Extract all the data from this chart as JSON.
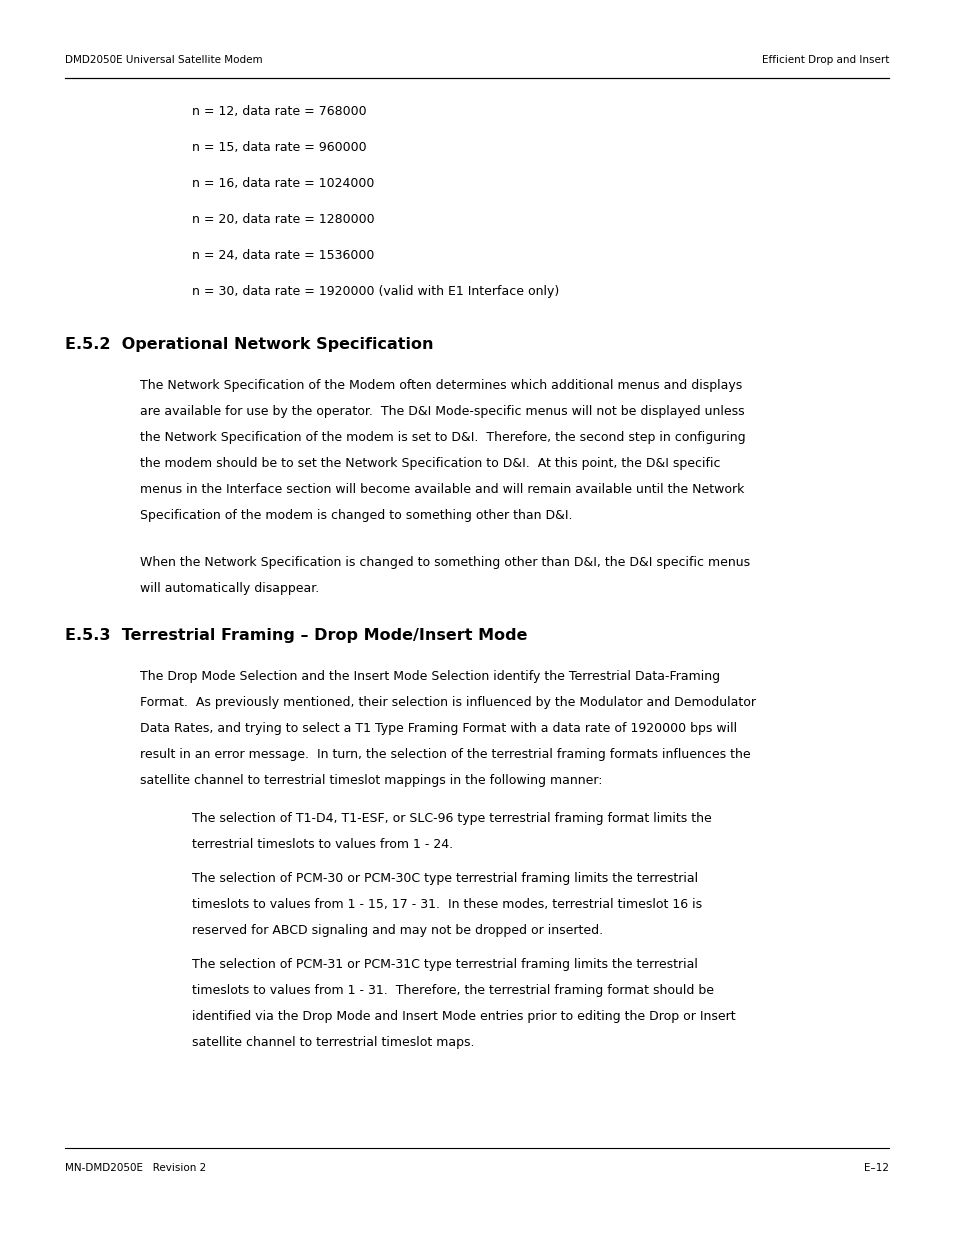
{
  "header_left": "DMD2050E Universal Satellite Modem",
  "header_right": "Efficient Drop and Insert",
  "footer_left": "MN-DMD2050E   Revision 2",
  "footer_right": "E–12",
  "bg_color": "#ffffff",
  "text_color": "#000000",
  "data_lines": [
    "n = 12, data rate = 768000",
    "n = 15, data rate = 960000",
    "n = 16, data rate = 1024000",
    "n = 20, data rate = 1280000",
    "n = 24, data rate = 1536000",
    "n = 30, data rate = 1920000 (valid with E1 Interface only)"
  ],
  "section_e52_title": "E.5.2  Operational Network Specification",
  "section_e52_body": [
    "The Network Specification of the Modem often determines which additional menus and displays",
    "are available for use by the operator.  The D&I Mode-specific menus will not be displayed unless",
    "the Network Specification of the modem is set to D&I.  Therefore, the second step in configuring",
    "the modem should be to set the Network Specification to D&I.  At this point, the D&I specific",
    "menus in the Interface section will become available and will remain available until the Network",
    "Specification of the modem is changed to something other than D&I.",
    "",
    "When the Network Specification is changed to something other than D&I, the D&I specific menus",
    "will automatically disappear."
  ],
  "section_e53_title": "E.5.3  Terrestrial Framing – Drop Mode/Insert Mode",
  "section_e53_body": [
    "The Drop Mode Selection and the Insert Mode Selection identify the Terrestrial Data-Framing",
    "Format.  As previously mentioned, their selection is influenced by the Modulator and Demodulator",
    "Data Rates, and trying to select a T1 Type Framing Format with a data rate of 1920000 bps will",
    "result in an error message.  In turn, the selection of the terrestrial framing formats influences the",
    "satellite channel to terrestrial timeslot mappings in the following manner:"
  ],
  "bullets": [
    {
      "lines": [
        "The selection of T1-D4, T1-ESF, or SLC-96 type terrestrial framing format limits the",
        "terrestrial timeslots to values from 1 - 24."
      ]
    },
    {
      "lines": [
        "The selection of PCM-30 or PCM-30C type terrestrial framing limits the terrestrial",
        "timeslots to values from 1 - 15, 17 - 31.  In these modes, terrestrial timeslot 16 is",
        "reserved for ABCD signaling and may not be dropped or inserted."
      ]
    },
    {
      "lines": [
        "The selection of PCM-31 or PCM-31C type terrestrial framing limits the terrestrial",
        "timeslots to values from 1 - 31.  Therefore, the terrestrial framing format should be",
        "identified via the Drop Mode and Insert Mode entries prior to editing the Drop or Insert",
        "satellite channel to terrestrial timeslot maps."
      ]
    }
  ]
}
